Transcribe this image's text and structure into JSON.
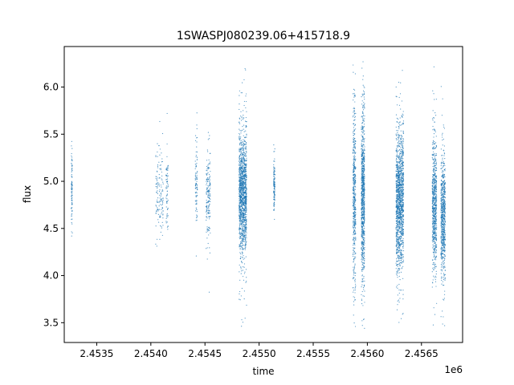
{
  "chart_data": {
    "type": "scatter",
    "title": "1SWASPJ080239.06+415718.9",
    "xlabel": "time",
    "ylabel": "flux",
    "x_offset_label": "1e6",
    "xlim": [
      2453200,
      2456880
    ],
    "ylim": [
      3.29,
      6.43
    ],
    "x_ticks": [
      2453500,
      2454000,
      2454500,
      2455000,
      2455500,
      2456000,
      2456500
    ],
    "x_tick_labels": [
      "2.4535",
      "2.4540",
      "2.4545",
      "2.4550",
      "2.4555",
      "2.4560",
      "2.4565"
    ],
    "y_ticks": [
      3.5,
      4.0,
      4.5,
      5.0,
      5.5,
      6.0
    ],
    "y_tick_labels": [
      "3.5",
      "4.0",
      "4.5",
      "5.0",
      "5.5",
      "6.0"
    ],
    "grid": false,
    "legend": "none",
    "marker_color": "#1f77b4",
    "series": [
      {
        "clusters": [
          {
            "x_center": 2453270,
            "x_width": 10,
            "y_center": 4.95,
            "spread": 0.22,
            "count": 90
          },
          {
            "x_center": 2454080,
            "x_width": 70,
            "y_center": 4.87,
            "spread": 0.2,
            "count": 140
          },
          {
            "x_center": 2454150,
            "x_width": 20,
            "y_center": 4.9,
            "spread": 0.18,
            "count": 70
          },
          {
            "x_center": 2454420,
            "x_width": 20,
            "y_center": 4.95,
            "spread": 0.2,
            "count": 90
          },
          {
            "x_center": 2454530,
            "x_width": 40,
            "y_center": 4.82,
            "spread": 0.25,
            "count": 180
          },
          {
            "x_center": 2454850,
            "x_width": 70,
            "y_center": 4.87,
            "spread": 0.32,
            "count": 1400
          },
          {
            "x_center": 2455140,
            "x_width": 12,
            "y_center": 4.95,
            "spread": 0.15,
            "count": 120
          },
          {
            "x_center": 2455880,
            "x_width": 25,
            "y_center": 4.85,
            "spread": 0.45,
            "count": 500
          },
          {
            "x_center": 2455960,
            "x_width": 30,
            "y_center": 4.85,
            "spread": 0.42,
            "count": 900
          },
          {
            "x_center": 2456300,
            "x_width": 70,
            "y_center": 4.8,
            "spread": 0.36,
            "count": 1400
          },
          {
            "x_center": 2456620,
            "x_width": 40,
            "y_center": 4.78,
            "spread": 0.33,
            "count": 700
          },
          {
            "x_center": 2456700,
            "x_width": 40,
            "y_center": 4.6,
            "spread": 0.3,
            "count": 700
          }
        ]
      }
    ]
  }
}
